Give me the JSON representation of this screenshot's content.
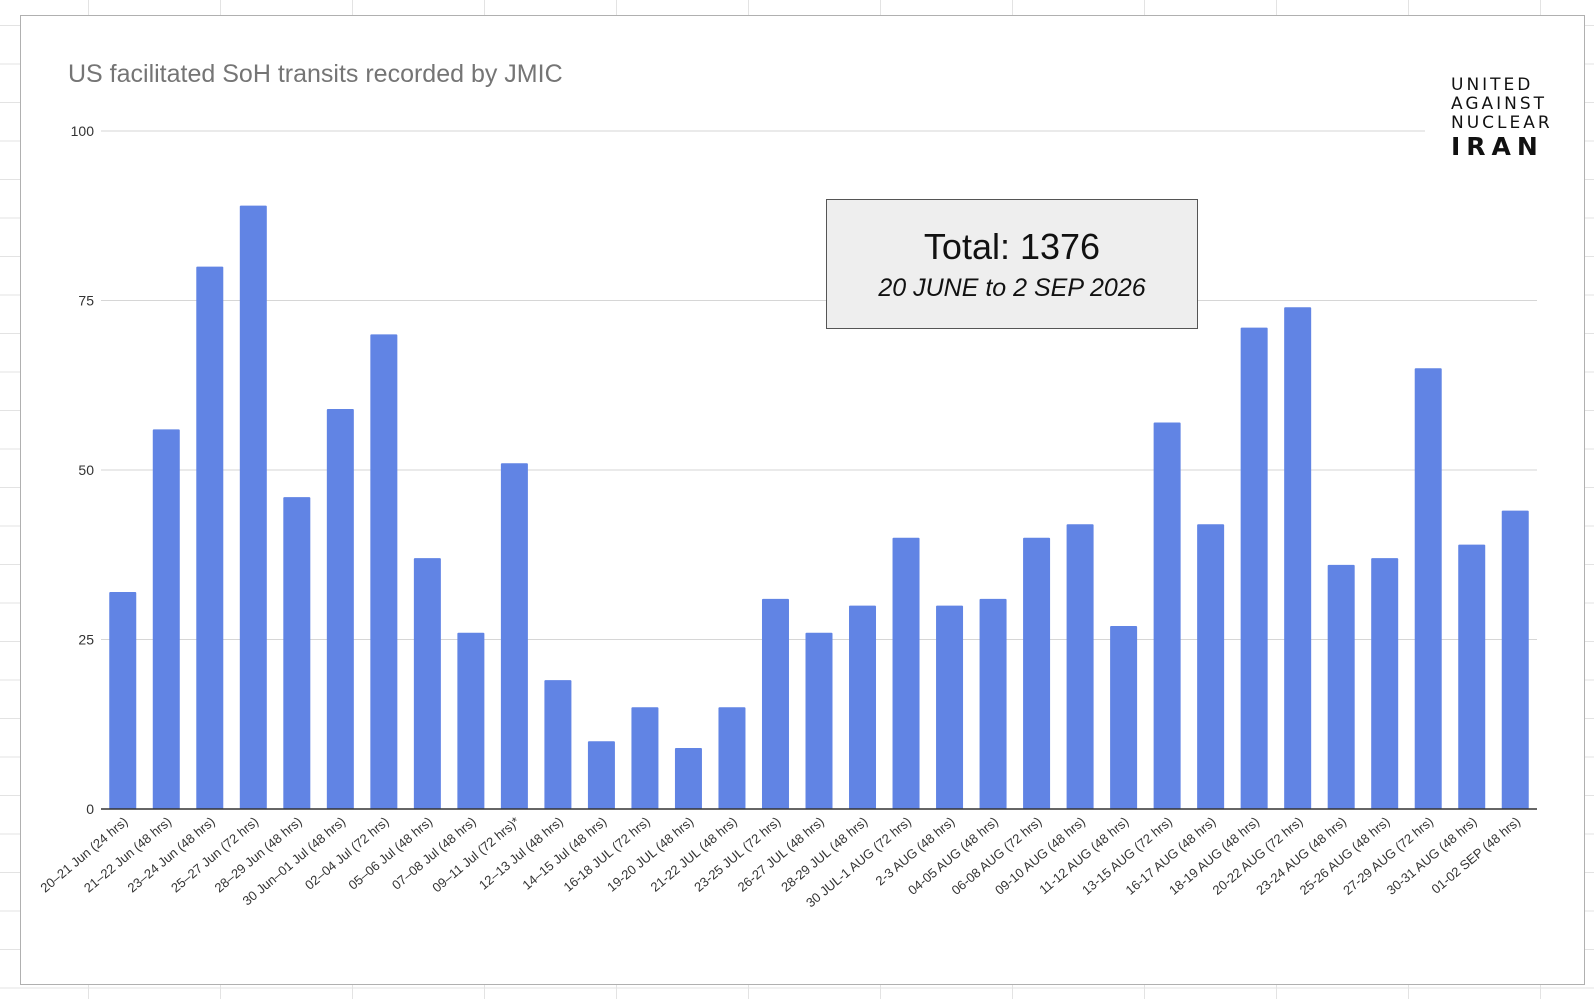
{
  "chart_data": {
    "type": "bar",
    "title": "US facilitated SoH transits recorded by JMIC",
    "xlabel": "",
    "ylabel": "",
    "ylim": [
      0,
      100
    ],
    "yticks": [
      0,
      25,
      50,
      75,
      100
    ],
    "grid": true,
    "categories": [
      "20–21 Jun (24 hrs)",
      "21–22 Jun (48 hrs)",
      "23–24 Jun (48 hrs)",
      "25–27 Jun (72 hrs)",
      "28–29 Jun (48 hrs)",
      "30 Jun–01 Jul (48 hrs)",
      "02–04 Jul (72 hrs)",
      "05–06 Jul (48 hrs)",
      "07–08 Jul (48 hrs)",
      "09–11 Jul (72 hrs)*",
      "12–13 Jul (48 hrs)",
      "14–15 Jul (48 hrs)",
      "16-18 JUL (72 hrs)",
      "19-20 JUL (48 hrs)",
      "21-22 JUL (48 hrs)",
      "23-25 JUL (72 hrs)",
      "26-27 JUL (48 hrs)",
      "28-29 JUL (48 hrs)",
      "30 JUL-1 AUG (72 hrs)",
      "2-3 AUG (48 hrs)",
      "04-05 AUG (48 hrs)",
      "06-08 AUG (72 hrs)",
      "09-10 AUG (48 hrs)",
      "11-12 AUG (48 hrs)",
      "13-15 AUG (72 hrs)",
      "16-17 AUG (48 hrs)",
      "18-19 AUG (48 hrs)",
      "20-22 AUG (72 hrs)",
      "23-24 AUG (48 hrs)",
      "25-26 AUG (48 hrs)",
      "27-29 AUG (72 hrs)",
      "30-31 AUG (48 hrs)",
      "01-02 SEP (48 hrs)"
    ],
    "values": [
      32,
      56,
      80,
      89,
      46,
      59,
      70,
      37,
      26,
      51,
      19,
      10,
      15,
      9,
      15,
      31,
      26,
      30,
      40,
      30,
      31,
      40,
      42,
      27,
      57,
      42,
      71,
      74,
      36,
      37,
      65,
      39,
      44
    ],
    "bar_color": "#6184e4",
    "annotation": {
      "total": "Total: 1376",
      "range": "20 JUNE to 2 SEP 2026"
    }
  },
  "logo": {
    "lines": [
      "UNITED",
      "AGAINST",
      "NUCLEAR",
      "IRAN"
    ]
  }
}
